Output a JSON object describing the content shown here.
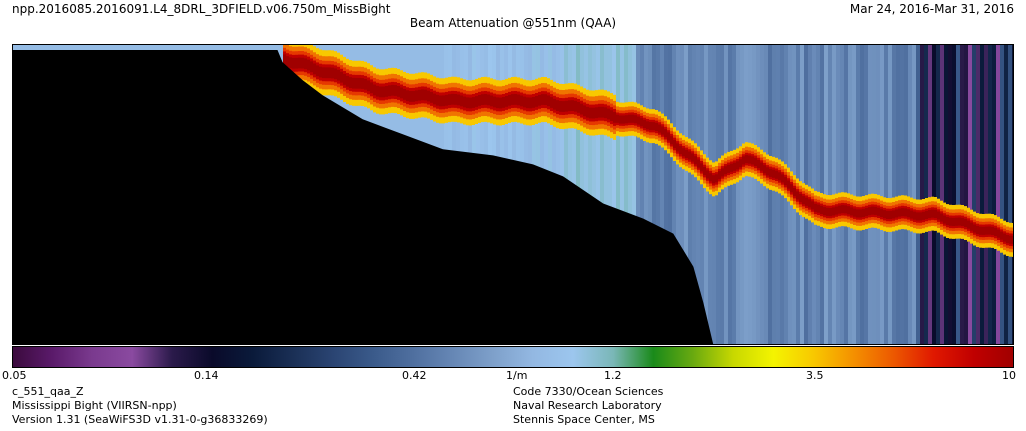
{
  "header": {
    "file_title": "npp.2016085.2016091.L4_8DRL_3DFIELD.v06.750m_MissBight",
    "date_range": "Mar 24, 2016-Mar 31, 2016",
    "chart_title": "Beam Attenuation @551nm (QAA)"
  },
  "colorbar": {
    "ticks": [
      {
        "label": "0.05",
        "value": 0.05
      },
      {
        "label": "0.14",
        "value": 0.14
      },
      {
        "label": "0.42",
        "value": 0.42
      },
      {
        "label": "1/m",
        "value": 0.72
      },
      {
        "label": "1.2",
        "value": 1.2
      },
      {
        "label": "3.5",
        "value": 3.5
      },
      {
        "label": "10",
        "value": 10
      }
    ],
    "colors": [
      "#3a0a3c",
      "#5a1a6a",
      "#7a3a8e",
      "#8a4aa0",
      "#2a1a4a",
      "#0a0a2a",
      "#0a1a3a",
      "#1a2f55",
      "#2a4472",
      "#3a5a8a",
      "#4f6f9f",
      "#6687b5",
      "#7ea0ca",
      "#93b8e2",
      "#9cc6ee",
      "#7ab7b7",
      "#1a8a1a",
      "#6aaa10",
      "#c8d800",
      "#f4f400",
      "#f8c800",
      "#f49000",
      "#ec5800",
      "#e01800",
      "#c00000",
      "#a00000"
    ]
  },
  "footer": {
    "left": [
      "c_551_qaa_Z",
      "Mississippi Bight (VIIRSN-npp)",
      "Version 1.31 (SeaWiFS3D v1.31-0-g36833269)"
    ],
    "right": [
      "Code 7330/Ocean Sciences",
      "Naval Research Laboratory",
      "Stennis Space Center, MS"
    ]
  },
  "chart_data": {
    "type": "heatmap",
    "title": "Beam Attenuation @551nm (QAA)",
    "variable": "c_551_qaa_Z",
    "units": "1/m",
    "color_scale": "log",
    "range": [
      0.05,
      10
    ],
    "colorbar_ticks": [
      0.05,
      0.14,
      0.42,
      1.2,
      3.5,
      10
    ],
    "high_layer_depth_fraction": [
      [
        0.27,
        0.05
      ],
      [
        0.3,
        0.08
      ],
      [
        0.36,
        0.15
      ],
      [
        0.44,
        0.19
      ],
      [
        0.53,
        0.19
      ],
      [
        0.64,
        0.27
      ],
      [
        0.7,
        0.45
      ],
      [
        0.73,
        0.38
      ],
      [
        0.76,
        0.43
      ],
      [
        0.8,
        0.55
      ],
      [
        0.86,
        0.56
      ],
      [
        0.92,
        0.57
      ],
      [
        1.0,
        0.65
      ]
    ]
  }
}
